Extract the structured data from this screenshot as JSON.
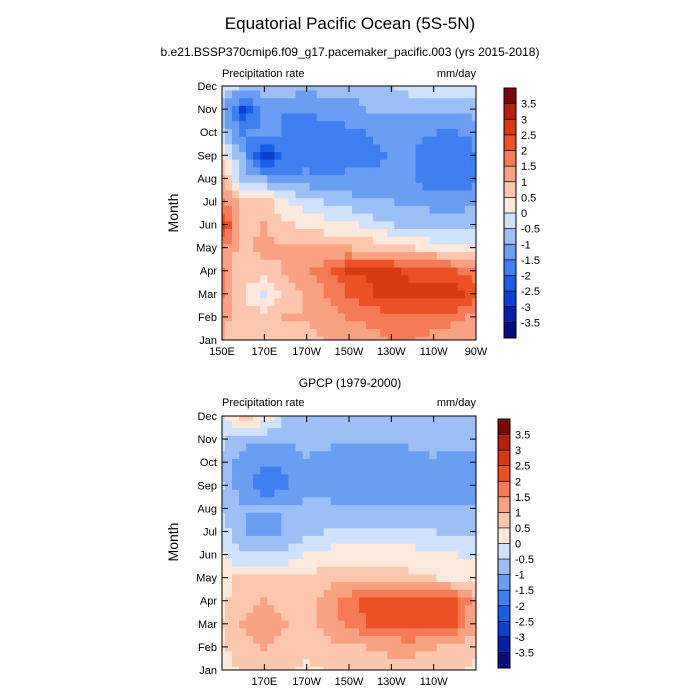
{
  "figure": {
    "title": "Equatorial Pacific Ocean (5S-5N)"
  },
  "colorbar": {
    "labels": [
      "-3.5",
      "-3",
      "-2.5",
      "-2",
      "-1.5",
      "-1",
      "-0.5",
      "0",
      "0.5",
      "1",
      "1.5",
      "2",
      "2.5",
      "3",
      "3.5"
    ],
    "colors": [
      "#0a0a78",
      "#0a1fa8",
      "#0b3fd0",
      "#1a5ee8",
      "#3f7ff0",
      "#6a9ef2",
      "#9cc0f6",
      "#cfe2fb",
      "#fde8dc",
      "#fcc7ad",
      "#f9a283",
      "#f57a56",
      "#ec5125",
      "#d73a10",
      "#b8200a",
      "#7a0606"
    ]
  },
  "chart_data": [
    {
      "type": "heatmap",
      "subtitle": "b.e21.BSSP370cmip6.f09_g17.pacemaker_pacific.003 (yrs 2015-2018)",
      "left_label": "Precipitation rate",
      "right_label": "mm/day",
      "ylabel": "Month",
      "x_ticks": [
        "150E",
        "170E",
        "170W",
        "150W",
        "130W",
        "110W",
        "90W"
      ],
      "y_ticks": [
        "Jan",
        "Feb",
        "Mar",
        "Apr",
        "May",
        "Jun",
        "Jul",
        "Aug",
        "Sep",
        "Oct",
        "Nov",
        "Dec"
      ],
      "x_range": [
        150,
        270
      ],
      "grid_x": [
        150,
        160,
        170,
        180,
        190,
        200,
        210,
        220,
        230,
        240,
        250,
        260,
        270
      ],
      "values": [
        [
          1.0,
          0.6,
          0.8,
          0.8,
          0.8,
          1.0,
          1.3,
          1.3,
          1.5,
          1.5,
          1.3,
          1.2,
          1.0
        ],
        [
          1.2,
          0.6,
          0.8,
          1.0,
          1.0,
          1.3,
          1.5,
          1.6,
          1.8,
          1.8,
          1.8,
          1.6,
          1.3
        ],
        [
          1.5,
          0.7,
          -0.3,
          0.7,
          1.0,
          1.5,
          2.0,
          2.4,
          2.8,
          2.6,
          2.6,
          2.8,
          2.2
        ],
        [
          1.5,
          0.6,
          0.8,
          1.0,
          1.4,
          1.8,
          2.5,
          2.6,
          2.6,
          2.4,
          2.4,
          2.0,
          1.7
        ],
        [
          1.4,
          0.8,
          1.2,
          1.0,
          1.1,
          1.0,
          1.0,
          0.9,
          0.8,
          0.5,
          0.3,
          0.3,
          0.1
        ],
        [
          2.8,
          0.8,
          1.0,
          0.6,
          0.4,
          0.2,
          0.1,
          -0.2,
          -0.5,
          -0.6,
          -0.7,
          -0.7,
          -0.7
        ],
        [
          1.5,
          0.8,
          0.9,
          0.1,
          -0.3,
          -0.6,
          -0.8,
          -0.9,
          -1.0,
          -1.1,
          -1.2,
          -1.2,
          -1.1
        ],
        [
          1.2,
          -0.8,
          -1.0,
          -1.3,
          -1.3,
          -1.4,
          -1.4,
          -1.4,
          -1.4,
          -1.5,
          -1.8,
          -2.0,
          -1.6
        ],
        [
          0.3,
          -1.0,
          -2.8,
          -2.0,
          -1.9,
          -1.8,
          -1.7,
          -1.6,
          -1.5,
          -1.5,
          -1.8,
          -2.0,
          -1.6
        ],
        [
          -0.5,
          -1.6,
          -1.2,
          -1.6,
          -1.6,
          -1.6,
          -1.6,
          -1.5,
          -1.4,
          -1.3,
          -1.5,
          -1.6,
          -1.3
        ],
        [
          -0.8,
          -2.6,
          -1.5,
          -1.5,
          -1.5,
          -1.4,
          -1.3,
          -1.0,
          -1.0,
          -1.0,
          -1.0,
          -0.9,
          -0.8
        ],
        [
          -0.3,
          -0.6,
          -0.7,
          -0.7,
          -0.8,
          -0.7,
          -0.7,
          -0.7,
          -0.6,
          -0.2,
          -0.1,
          -0.2,
          -0.3
        ]
      ]
    },
    {
      "type": "heatmap",
      "subtitle": "GPCP (1979-2000)",
      "left_label": "Precipitation rate",
      "right_label": "mm/day",
      "ylabel": "Month",
      "x_ticks": [
        "170E",
        "170W",
        "150W",
        "130W",
        "110W"
      ],
      "y_ticks": [
        "Jan",
        "Feb",
        "Mar",
        "Apr",
        "May",
        "Jun",
        "Jul",
        "Aug",
        "Sep",
        "Oct",
        "Nov",
        "Dec"
      ],
      "x_range": [
        150,
        270
      ],
      "grid_x": [
        150,
        160,
        170,
        180,
        190,
        200,
        210,
        220,
        230,
        240,
        250,
        260,
        270
      ],
      "values": [
        [
          0.2,
          0.6,
          0.8,
          0.6,
          0.4,
          0.5,
          0.6,
          0.7,
          0.8,
          0.8,
          0.7,
          0.6,
          0.4
        ],
        [
          0.4,
          0.8,
          1.0,
          0.8,
          0.6,
          0.8,
          0.9,
          1.0,
          1.1,
          1.1,
          1.0,
          0.8,
          0.6
        ],
        [
          0.5,
          1.0,
          1.3,
          1.0,
          0.8,
          1.2,
          1.6,
          2.0,
          2.2,
          2.4,
          2.2,
          2.0,
          1.2
        ],
        [
          0.4,
          0.8,
          1.0,
          0.8,
          0.8,
          1.2,
          1.8,
          2.2,
          2.4,
          2.2,
          2.3,
          2.1,
          1.2
        ],
        [
          0.3,
          0.6,
          0.7,
          0.6,
          0.6,
          0.8,
          0.8,
          0.8,
          0.8,
          0.6,
          0.5,
          0.4,
          0.3
        ],
        [
          0.0,
          -0.4,
          -0.5,
          -0.3,
          0.0,
          0.2,
          0.3,
          0.3,
          0.3,
          0.2,
          0.1,
          0.0,
          -0.1
        ],
        [
          -0.2,
          -1.0,
          -1.1,
          -1.0,
          -0.6,
          -0.5,
          -0.4,
          -0.4,
          -0.4,
          -0.4,
          -0.5,
          -0.6,
          -0.7
        ],
        [
          -0.6,
          -1.0,
          -1.0,
          -1.0,
          -0.9,
          -0.9,
          -1.0,
          -1.0,
          -1.0,
          -1.0,
          -1.0,
          -1.0,
          -1.0
        ],
        [
          -0.5,
          -1.3,
          -1.8,
          -1.7,
          -1.1,
          -1.1,
          -1.3,
          -1.3,
          -1.5,
          -1.3,
          -1.1,
          -1.1,
          -1.3
        ],
        [
          -0.7,
          -1.3,
          -1.5,
          -1.4,
          -1.1,
          -1.2,
          -1.4,
          -1.4,
          -1.3,
          -1.2,
          -1.1,
          -1.1,
          -1.2
        ],
        [
          -0.4,
          -0.8,
          -0.9,
          -0.9,
          -0.8,
          -0.9,
          -0.9,
          -0.9,
          -0.9,
          -0.9,
          -0.8,
          -0.9,
          -0.9
        ],
        [
          -0.3,
          0.8,
          0.3,
          -0.6,
          -0.7,
          -0.8,
          -0.8,
          -0.8,
          -0.7,
          -0.7,
          -0.7,
          -0.7,
          -0.6
        ]
      ]
    }
  ]
}
